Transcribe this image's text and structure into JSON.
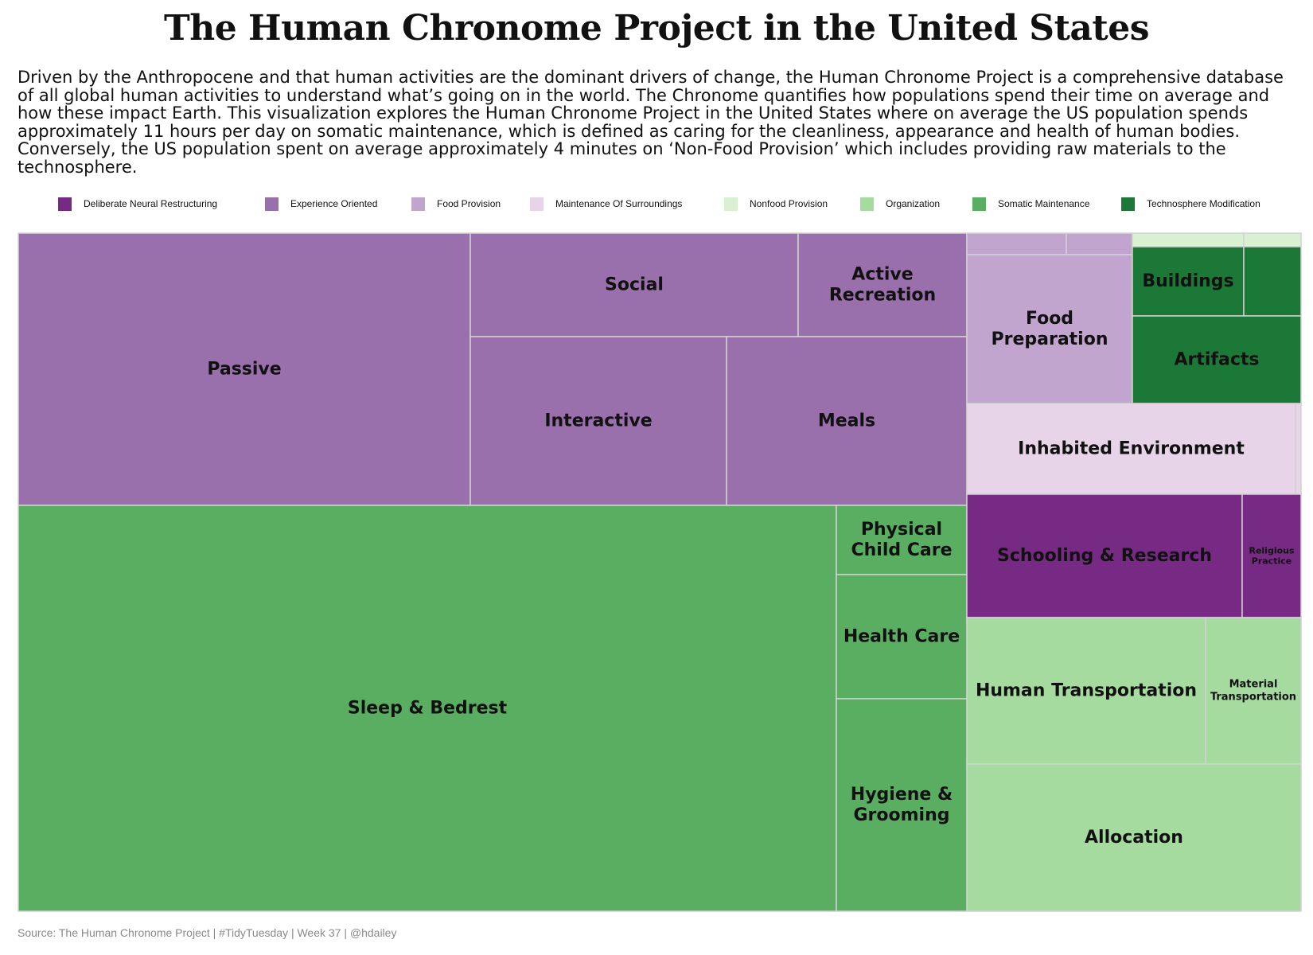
{
  "chart_data": {
    "type": "treemap",
    "title": "The Human Chronome Project in the United States",
    "subtitle": "Driven by the Anthropocene and that human activities are the dominant drivers of change, the Human Chronome Project is a comprehensive database of all global human activities to understand what’s going on in the world. The Chronome quantifies how populations spend their time on average and how these impact Earth. This visualization explores the Human Chronome Project in the United States where on average the US population spends approximately 11 hours per day on somatic maintenance, which is defined as caring for the cleanliness, appearance and health of human bodies. Conversely, the US population spent on average approximately 4 minutes on ‘Non-Food Provision’ which includes providing raw materials to the technosphere.",
    "source": "Source: The Human Chronome Project | #TidyTuesday | Week 37 | @hdailey",
    "legend_position": "top",
    "categories": [
      {
        "name": "Deliberate Neural Restructuring",
        "color": "#762a83"
      },
      {
        "name": "Experience Oriented",
        "color": "#9970ab"
      },
      {
        "name": "Food Provision",
        "color": "#c2a5cf"
      },
      {
        "name": "Maintenance Of Surroundings",
        "color": "#e7d4e8"
      },
      {
        "name": "Nonfood Provision",
        "color": "#d9f0d3"
      },
      {
        "name": "Organization",
        "color": "#a6dba0"
      },
      {
        "name": "Somatic Maintenance",
        "color": "#5aae61"
      },
      {
        "name": "Technosphere Modification",
        "color": "#1b7837"
      }
    ],
    "cells": [
      {
        "label": "Passive",
        "category": "Experience Oriented"
      },
      {
        "label": "Social",
        "category": "Experience Oriented"
      },
      {
        "label": "Active Recreation",
        "category": "Experience Oriented"
      },
      {
        "label": "Interactive",
        "category": "Experience Oriented"
      },
      {
        "label": "Meals",
        "category": "Experience Oriented"
      },
      {
        "label": "Sleep & Bedrest",
        "category": "Somatic Maintenance"
      },
      {
        "label": "Physical Child Care",
        "category": "Somatic Maintenance"
      },
      {
        "label": "Health Care",
        "category": "Somatic Maintenance"
      },
      {
        "label": "Hygiene & Grooming",
        "category": "Somatic Maintenance"
      },
      {
        "label": "",
        "category": "Food Provision"
      },
      {
        "label": "",
        "category": "Food Provision"
      },
      {
        "label": "Food Preparation",
        "category": "Food Provision"
      },
      {
        "label": "",
        "category": "Nonfood Provision"
      },
      {
        "label": "",
        "category": "Nonfood Provision"
      },
      {
        "label": "Buildings",
        "category": "Technosphere Modification"
      },
      {
        "label": "",
        "category": "Technosphere Modification"
      },
      {
        "label": "Artifacts",
        "category": "Technosphere Modification"
      },
      {
        "label": "Inhabited Environment",
        "category": "Maintenance Of Surroundings"
      },
      {
        "label": "",
        "category": "Maintenance Of Surroundings"
      },
      {
        "label": "Schooling & Research",
        "category": "Deliberate Neural Restructuring"
      },
      {
        "label": "Religious Practice",
        "category": "Deliberate Neural Restructuring"
      },
      {
        "label": "Human Transportation",
        "category": "Organization"
      },
      {
        "label": "Material Transportation",
        "category": "Organization"
      },
      {
        "label": "Allocation",
        "category": "Organization"
      }
    ]
  }
}
